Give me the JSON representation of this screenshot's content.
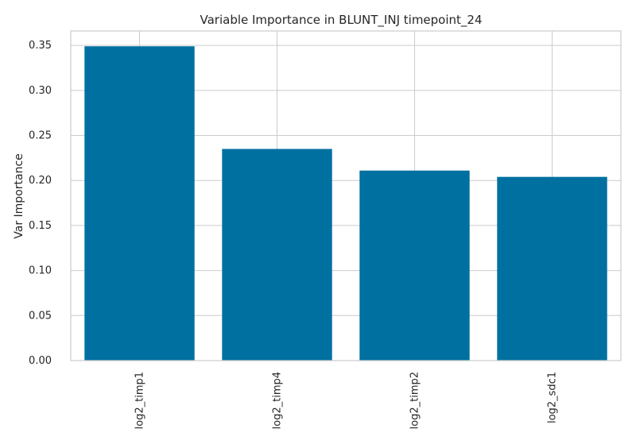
{
  "chart_data": {
    "type": "bar",
    "title": "Variable Importance in BLUNT_INJ timepoint_24",
    "xlabel": "",
    "ylabel": "Var Importance",
    "categories": [
      "log2_timp1",
      "log2_timp4",
      "log2_timp2",
      "log2_sdc1"
    ],
    "values": [
      0.349,
      0.235,
      0.211,
      0.204
    ],
    "ylim": [
      0,
      0.366
    ],
    "yticks": [
      0.0,
      0.05,
      0.1,
      0.15,
      0.2,
      0.25,
      0.3,
      0.35
    ],
    "ytick_labels": [
      "0.00",
      "0.05",
      "0.10",
      "0.15",
      "0.20",
      "0.25",
      "0.30",
      "0.35"
    ],
    "bar_color": "#0070a0",
    "grid": true,
    "legend": "none"
  }
}
